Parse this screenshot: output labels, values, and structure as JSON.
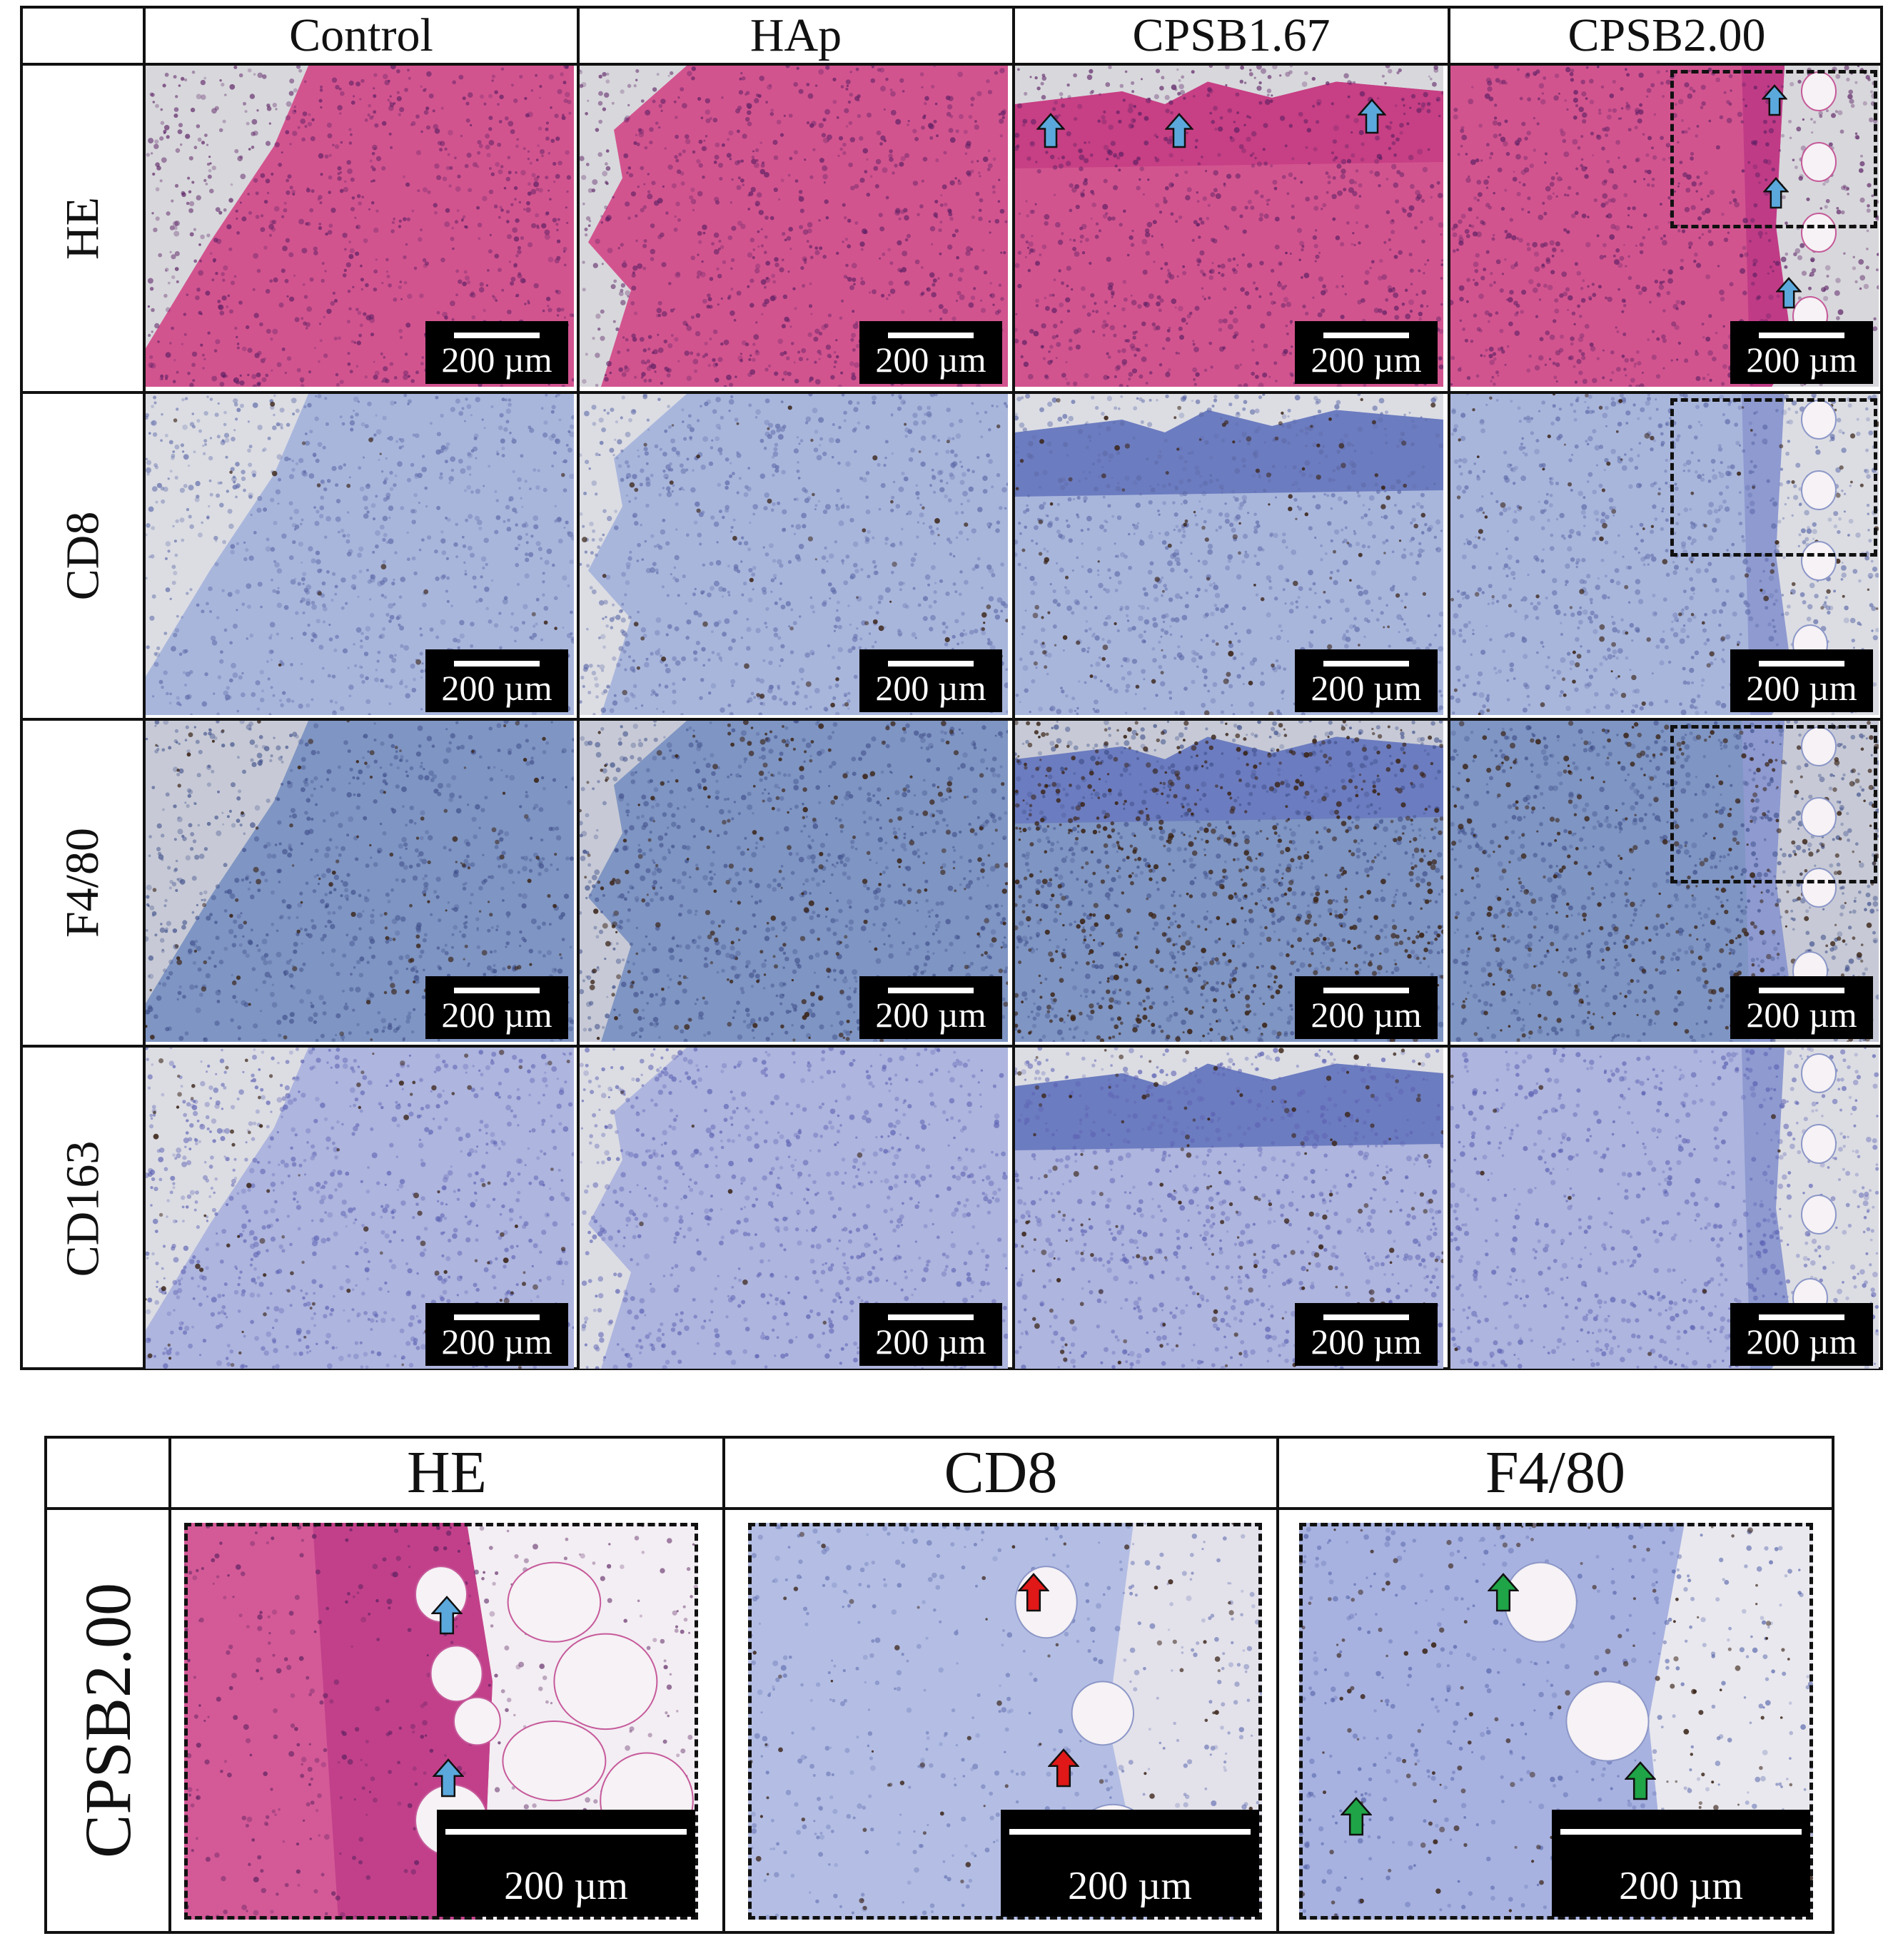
{
  "top_figure": {
    "columns": [
      "Control",
      "HAp",
      "CPSB1.67",
      "CPSB2.00"
    ],
    "rows": [
      "HE",
      "CD8",
      "F4/80",
      "CD163"
    ],
    "scale_label": "200 µm",
    "stain_colors": {
      "HE": "#d2548f",
      "CD8": "#a9b6dc",
      "F4/80": "#7f95c3",
      "CD163": "#aeb5de"
    }
  },
  "bottom_figure": {
    "row_label": "CPSB2.00",
    "columns": [
      "HE",
      "CD8",
      "F4/80"
    ],
    "scale_label": "200 µm"
  },
  "arrow_colors": {
    "blue": "#5ba8dc",
    "red": "#e01818",
    "green": "#1fa447"
  }
}
